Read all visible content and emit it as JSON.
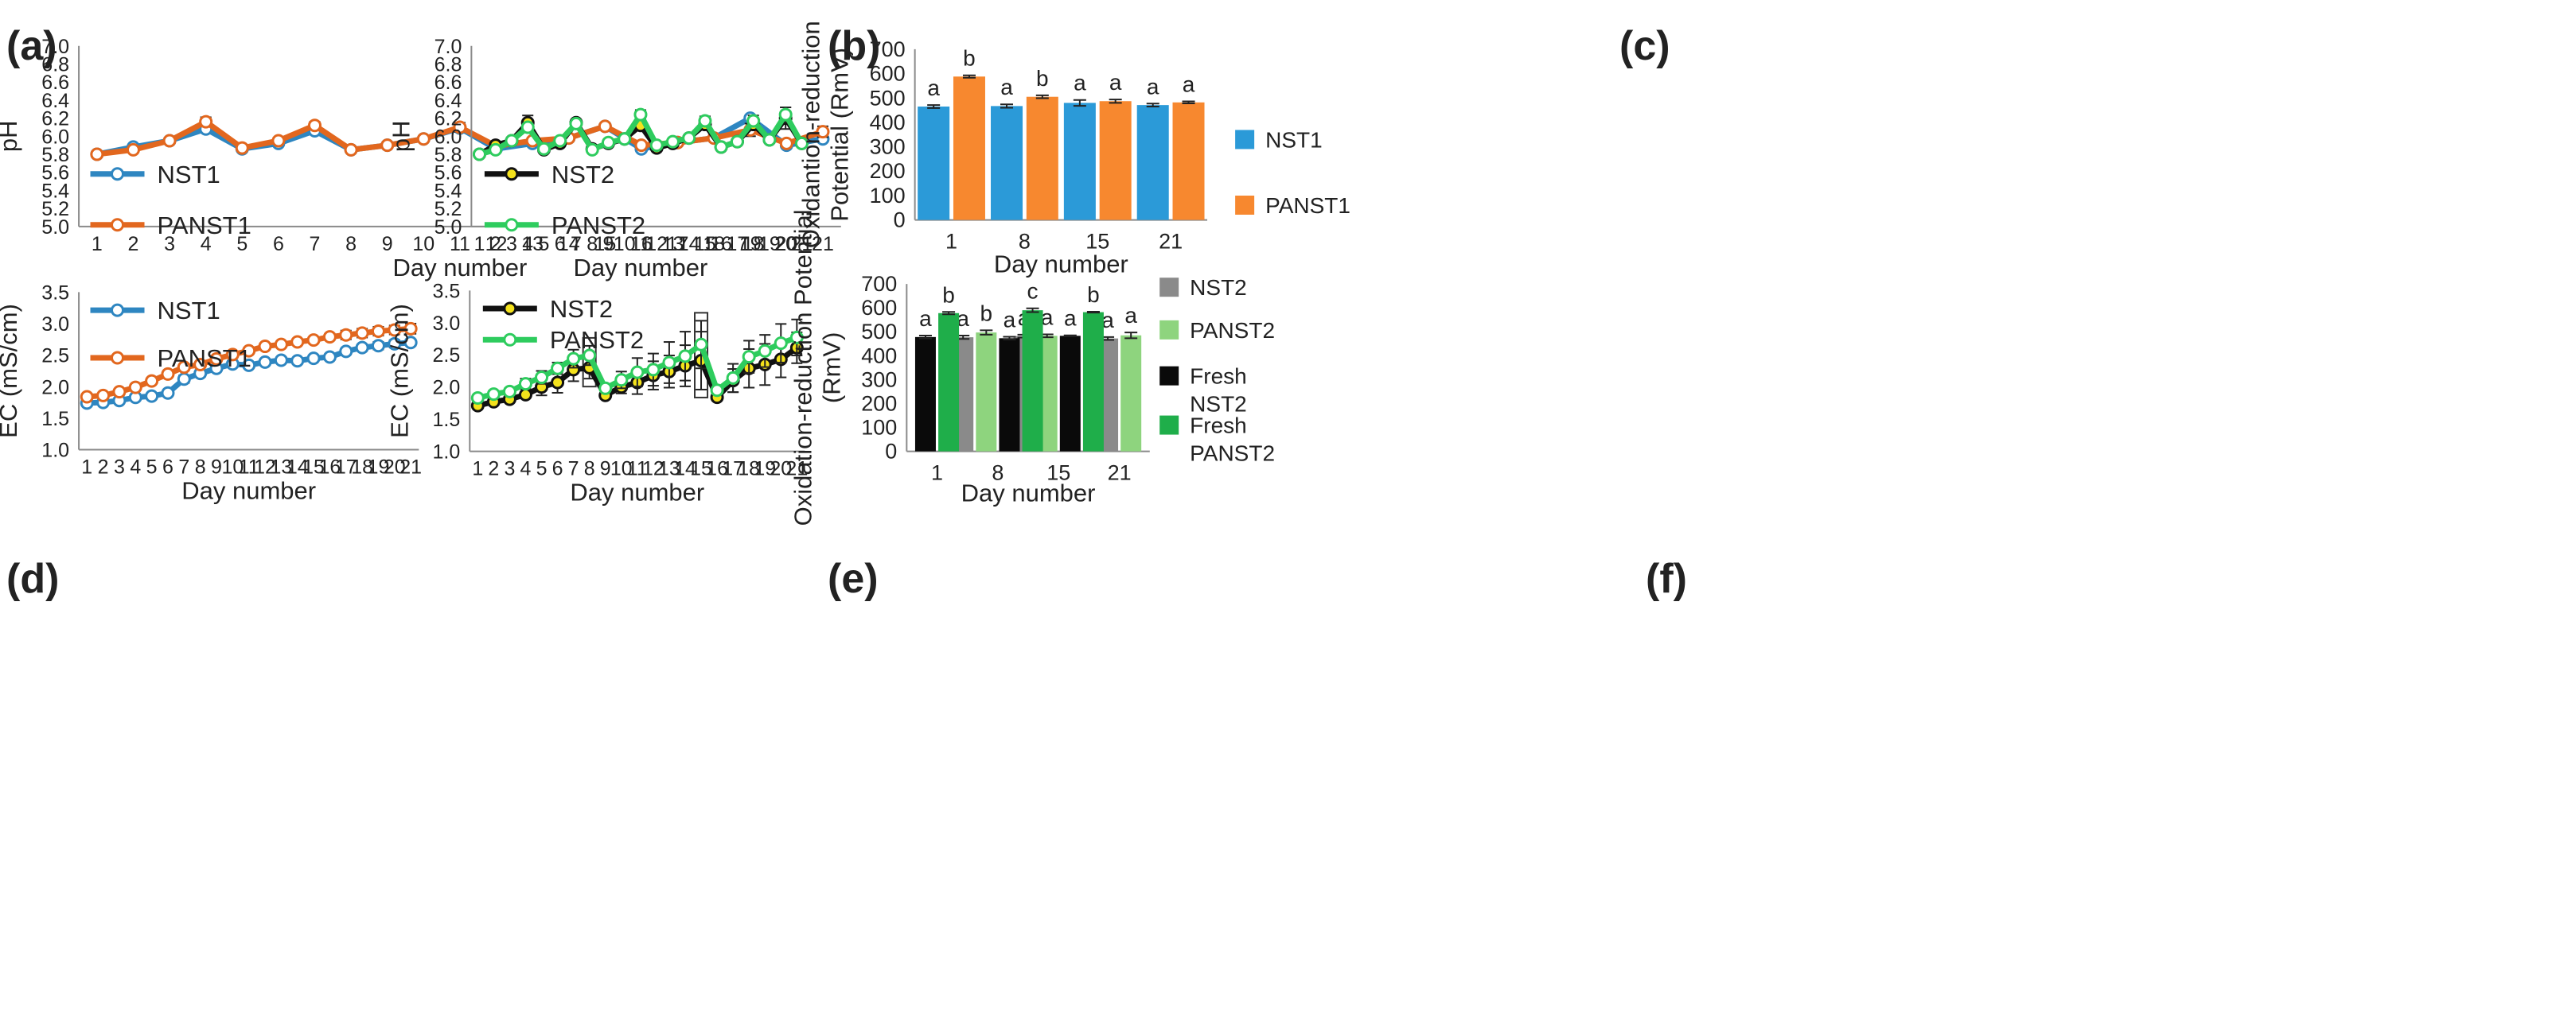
{
  "figure": {
    "panel_labels": [
      "(a)",
      "(b)",
      "(c)",
      "(d)",
      "(e)",
      "(f)"
    ]
  },
  "colors": {
    "NST1": "#2E86C1",
    "PANST1": "#E2671E",
    "NST2": "#111111",
    "PANST2": "#2ECC5E",
    "marker_fill": "#FFFFFF",
    "NST2_marker": "#F4E21C",
    "bar_NST1": "#2B9AD8",
    "bar_PANST1": "#F7882F",
    "bar_NST2": "#8A8A8A",
    "bar_PANST2": "#8ED47E",
    "bar_FreshNST2": "#0A0A0A",
    "bar_FreshPANST2": "#1FAE4A"
  },
  "chart_data": [
    {
      "panel": "(a)",
      "type": "line",
      "xlabel": "Day number",
      "ylabel": "pH",
      "x": [
        1,
        2,
        3,
        4,
        5,
        6,
        7,
        8,
        9,
        10,
        11,
        12,
        13,
        14,
        15,
        16,
        17,
        18,
        19,
        20,
        21
      ],
      "xticks": [
        "1",
        "2",
        "3",
        "4",
        "5",
        "6",
        "7",
        "8",
        "9",
        "10",
        "11",
        "12",
        "13",
        "14",
        "15",
        "16",
        "17",
        "18",
        "19",
        "20",
        "21"
      ],
      "ylim": [
        5.0,
        7.0
      ],
      "yticks": [
        "5.0",
        "5.2",
        "5.4",
        "5.6",
        "5.8",
        "6.0",
        "6.2",
        "6.4",
        "6.6",
        "6.8",
        "7.0"
      ],
      "series": [
        {
          "name": "NST1",
          "values": [
            5.8,
            5.88,
            5.95,
            6.08,
            5.86,
            5.92,
            6.06,
            5.85,
            5.9,
            5.97,
            6.09,
            5.86,
            5.92,
            5.98,
            6.11,
            5.86,
            5.93,
            5.98,
            6.2,
            5.9,
            5.97
          ],
          "errors": [
            0.01,
            0.02,
            0.01,
            0.04,
            0.02,
            0.02,
            0.03,
            0.01,
            0.01,
            0.02,
            0.04,
            0.03,
            0.02,
            0.01,
            0.02,
            0.03,
            0.01,
            0.01,
            0.02,
            0.02,
            0.03
          ]
        },
        {
          "name": "PANST1",
          "values": [
            5.8,
            5.85,
            5.95,
            6.16,
            5.87,
            5.95,
            6.12,
            5.85,
            5.9,
            5.97,
            6.1,
            5.89,
            5.95,
            5.98,
            6.11,
            5.9,
            5.93,
            5.98,
            6.07,
            5.92,
            6.05
          ],
          "errors": [
            0.01,
            0.02,
            0.01,
            0.05,
            0.02,
            0.02,
            0.04,
            0.01,
            0.01,
            0.02,
            0.05,
            0.02,
            0.02,
            0.01,
            0.02,
            0.02,
            0.01,
            0.01,
            0.07,
            0.02,
            0.06
          ]
        }
      ]
    },
    {
      "panel": "(b)",
      "type": "line",
      "xlabel": "Day number",
      "ylabel": "pH",
      "x": [
        1,
        2,
        3,
        4,
        5,
        6,
        7,
        8,
        9,
        10,
        11,
        12,
        13,
        14,
        15,
        16,
        17,
        18,
        19,
        20,
        21
      ],
      "xticks": [
        "1",
        "2",
        "3",
        "4",
        "5",
        "6",
        "7",
        "8",
        "9",
        "10",
        "11",
        "12",
        "13",
        "14",
        "15",
        "16",
        "17",
        "18",
        "19",
        "20",
        "21"
      ],
      "ylim": [
        5.0,
        7.0
      ],
      "yticks": [
        "5.0",
        "5.2",
        "5.4",
        "5.6",
        "5.8",
        "6.0",
        "6.2",
        "6.4",
        "6.6",
        "6.8",
        "7.0"
      ],
      "series": [
        {
          "name": "NST2",
          "values": [
            5.8,
            5.9,
            5.95,
            6.15,
            5.85,
            5.92,
            6.15,
            5.86,
            5.92,
            5.97,
            6.12,
            5.87,
            5.92,
            5.98,
            6.13,
            5.88,
            5.94,
            6.13,
            5.96,
            6.2,
            5.92
          ],
          "errors": [
            0.01,
            0.02,
            0.01,
            0.08,
            0.02,
            0.02,
            0.03,
            0.02,
            0.02,
            0.02,
            0.05,
            0.02,
            0.02,
            0.01,
            0.06,
            0.01,
            0.02,
            0.06,
            0.02,
            0.12,
            0.02
          ]
        },
        {
          "name": "PANST2",
          "values": [
            5.8,
            5.85,
            5.95,
            6.1,
            5.86,
            5.95,
            6.14,
            5.85,
            5.93,
            5.97,
            6.24,
            5.9,
            5.94,
            5.98,
            6.17,
            5.88,
            5.94,
            6.17,
            5.96,
            6.24,
            5.92
          ],
          "errors": [
            0.01,
            0.02,
            0.01,
            0.05,
            0.02,
            0.02,
            0.03,
            0.02,
            0.02,
            0.02,
            0.05,
            0.02,
            0.02,
            0.01,
            0.05,
            0.01,
            0.02,
            0.06,
            0.02,
            0.08,
            0.02
          ]
        }
      ]
    },
    {
      "panel": "(c)",
      "type": "bar",
      "xlabel": "Day number",
      "ylabel": "Oxidantion-reduction Potential (RmV)",
      "ylabel_lines": [
        "Oxidantion-reduction",
        "Potential (RmV)"
      ],
      "categories": [
        "1",
        "8",
        "15",
        "21"
      ],
      "ylim": [
        0,
        700
      ],
      "yticks": [
        "0",
        "100",
        "200",
        "300",
        "400",
        "500",
        "600",
        "700"
      ],
      "series": [
        {
          "name": "NST1",
          "values": [
            465,
            467,
            480,
            471
          ],
          "errors": [
            6,
            7,
            12,
            6
          ],
          "letters": [
            "a",
            "a",
            "a",
            "a"
          ]
        },
        {
          "name": "PANST1",
          "values": [
            588,
            505,
            487,
            482
          ],
          "errors": [
            5,
            6,
            7,
            4
          ],
          "letters": [
            "b",
            "b",
            "a",
            "a"
          ]
        }
      ]
    },
    {
      "panel": "(d)",
      "type": "line",
      "xlabel": "Day number",
      "ylabel": "EC (mS/cm)",
      "x": [
        1,
        2,
        3,
        4,
        5,
        6,
        7,
        8,
        9,
        10,
        11,
        12,
        13,
        14,
        15,
        16,
        17,
        18,
        19,
        20,
        21
      ],
      "xticks": [
        "1",
        "2",
        "3",
        "4",
        "5",
        "6",
        "7",
        "8",
        "9",
        "10",
        "11",
        "12",
        "13",
        "14",
        "15",
        "16",
        "17",
        "18",
        "19",
        "20",
        "21"
      ],
      "ylim": [
        1.0,
        3.5
      ],
      "yticks": [
        "1.0",
        "1.5",
        "2.0",
        "2.5",
        "3.0",
        "3.5"
      ],
      "series": [
        {
          "name": "NST1",
          "values": [
            1.74,
            1.75,
            1.78,
            1.83,
            1.85,
            1.9,
            2.12,
            2.21,
            2.29,
            2.36,
            2.34,
            2.39,
            2.42,
            2.41,
            2.45,
            2.47,
            2.56,
            2.62,
            2.65,
            2.68,
            2.7
          ],
          "errors": [
            0.01,
            0.01,
            0.02,
            0.02,
            0.02,
            0.02,
            0.06,
            0.05,
            0.05,
            0.05,
            0.04,
            0.04,
            0.04,
            0.02,
            0.03,
            0.03,
            0.05,
            0.05,
            0.06,
            0.06,
            0.05
          ]
        },
        {
          "name": "PANST1",
          "values": [
            1.84,
            1.86,
            1.92,
            1.99,
            2.09,
            2.2,
            2.31,
            2.35,
            2.44,
            2.51,
            2.57,
            2.64,
            2.67,
            2.71,
            2.74,
            2.79,
            2.82,
            2.85,
            2.88,
            2.9,
            2.92
          ],
          "errors": [
            0.02,
            0.02,
            0.02,
            0.03,
            0.03,
            0.03,
            0.04,
            0.04,
            0.05,
            0.05,
            0.03,
            0.04,
            0.04,
            0.03,
            0.04,
            0.05,
            0.07,
            0.07,
            0.07,
            0.07,
            0.08
          ]
        }
      ]
    },
    {
      "panel": "(e)",
      "type": "line",
      "xlabel": "Day number",
      "ylabel": "EC (mS/cm)",
      "x": [
        1,
        2,
        3,
        4,
        5,
        6,
        7,
        8,
        9,
        10,
        11,
        12,
        13,
        14,
        15,
        16,
        17,
        18,
        19,
        20,
        21
      ],
      "xticks": [
        "1",
        "2",
        "3",
        "4",
        "5",
        "6",
        "7",
        "8",
        "9",
        "10",
        "11",
        "12",
        "13",
        "14",
        "15",
        "16",
        "17",
        "18",
        "19",
        "20",
        "21"
      ],
      "ylim": [
        1.0,
        3.5
      ],
      "yticks": [
        "1.0",
        "1.5",
        "2.0",
        "2.5",
        "3.0",
        "3.5"
      ],
      "boxed_days": [
        8,
        15
      ],
      "series": [
        {
          "name": "NST2",
          "values": [
            1.71,
            1.77,
            1.81,
            1.88,
            2.0,
            2.07,
            2.27,
            2.3,
            1.87,
            2.0,
            2.07,
            2.18,
            2.24,
            2.33,
            2.41,
            1.84,
            2.1,
            2.29,
            2.35,
            2.43,
            2.61
          ],
          "errors": [
            0.02,
            0.03,
            0.03,
            0.05,
            0.13,
            0.16,
            0.18,
            0.17,
            0.05,
            0.1,
            0.18,
            0.22,
            0.25,
            0.32,
            0.45,
            0.05,
            0.18,
            0.3,
            0.32,
            0.28,
            0.24
          ]
        },
        {
          "name": "PANST2",
          "values": [
            1.83,
            1.89,
            1.93,
            2.05,
            2.15,
            2.29,
            2.44,
            2.49,
            1.98,
            2.11,
            2.23,
            2.27,
            2.38,
            2.48,
            2.66,
            1.95,
            2.14,
            2.47,
            2.56,
            2.68,
            2.77
          ],
          "errors": [
            0.03,
            0.05,
            0.05,
            0.08,
            0.1,
            0.09,
            0.14,
            0.15,
            0.06,
            0.13,
            0.22,
            0.25,
            0.32,
            0.38,
            0.37,
            0.07,
            0.22,
            0.25,
            0.25,
            0.3,
            0.28
          ]
        }
      ]
    },
    {
      "panel": "(f)",
      "type": "bar",
      "xlabel": "Day number",
      "ylabel": "Oxidation-reduction Potential (RmV)",
      "ylabel_lines": [
        "Oxidation-reduction Potential",
        "(RmV)"
      ],
      "categories": [
        "1",
        "8",
        "15",
        "21"
      ],
      "ylim": [
        0,
        700
      ],
      "yticks": [
        "0",
        "100",
        "200",
        "300",
        "400",
        "500",
        "600",
        "700"
      ],
      "series": [
        {
          "name": "NST2",
          "values": [
            null,
            477,
            482,
            472
          ],
          "errors": [
            0,
            7,
            6,
            6
          ],
          "letters": [
            "",
            "a",
            "a",
            "a"
          ]
        },
        {
          "name": "PANST2",
          "values": [
            null,
            497,
            483,
            485
          ],
          "errors": [
            0,
            9,
            6,
            12
          ],
          "letters": [
            "",
            "b",
            "a",
            "a"
          ]
        },
        {
          "name": "Fresh NST2",
          "values": [
            478,
            473,
            483,
            null
          ],
          "errors": [
            6,
            6,
            2,
            0
          ],
          "letters": [
            "a",
            "a",
            "a",
            ""
          ]
        },
        {
          "name": "Fresh PANST2",
          "values": [
            578,
            590,
            582,
            null
          ],
          "errors": [
            5,
            8,
            2,
            0
          ],
          "letters": [
            "b",
            "c",
            "b",
            ""
          ]
        }
      ],
      "legend": [
        "NST2",
        "PANST2",
        "Fresh NST2",
        "Fresh PANST2"
      ],
      "legend_lines": [
        [
          "NST2"
        ],
        [
          "PANST2"
        ],
        [
          "Fresh",
          "NST2"
        ],
        [
          "Fresh",
          "PANST2"
        ]
      ]
    }
  ]
}
